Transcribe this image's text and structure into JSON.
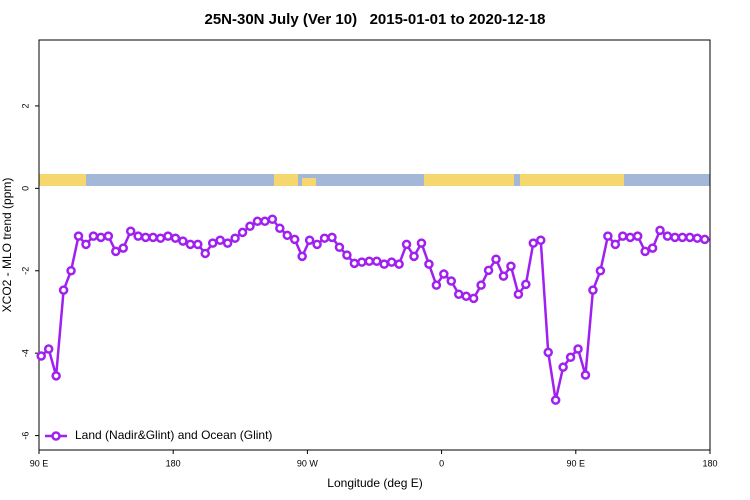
{
  "chart_data": {
    "type": "line",
    "title": "25N-30N July (Ver 10)   2015-01-01 to 2020-12-18",
    "x_label": "Longitude (deg E)",
    "y_label": "XCO2 - MLO trend (ppm)",
    "xlim": [
      90,
      540
    ],
    "ylim": [
      -6.35,
      3.6
    ],
    "xticks": [
      {
        "value": 90,
        "label": "90 E"
      },
      180,
      {
        "value": 270,
        "label": "90 W"
      },
      {
        "value": 360,
        "label": "0"
      },
      {
        "value": 450,
        "label": "90 E"
      },
      {
        "value": 540,
        "label": "180"
      }
    ],
    "yticks": [
      -6,
      -4,
      -2,
      0,
      2
    ],
    "legend_position": "bottom-left",
    "x": [
      91.5,
      96.5,
      101.5,
      106.5,
      111.5,
      116.5,
      121.5,
      126.5,
      131.5,
      136.5,
      141.5,
      146.5,
      151.5,
      156.5,
      161.5,
      166.5,
      171.5,
      176.5,
      181.5,
      186.5,
      191.5,
      196.5,
      201.5,
      206.5,
      211.5,
      216.5,
      221.5,
      226.5,
      231.5,
      236.5,
      241.5,
      246.5,
      251.5,
      256.5,
      261.5,
      266.5,
      271.5,
      276.5,
      281.5,
      286.5,
      291.5,
      296.5,
      301.5,
      306.5,
      311.5,
      316.5,
      321.5,
      326.5,
      331.5,
      336.5,
      341.5,
      346.5,
      351.5,
      356.5,
      361.5,
      366.5,
      371.5,
      376.5,
      381.5,
      386.5,
      391.5,
      396.5,
      401.5,
      406.5,
      411.5,
      416.5,
      421.5,
      426.5,
      431.5,
      436.5,
      441.5,
      446.5,
      451.5,
      456.5,
      461.5,
      466.5,
      471.5,
      476.5,
      481.5,
      486.5,
      491.5,
      496.5,
      501.5,
      506.5,
      511.5,
      516.5,
      521.5,
      526.5,
      531.5,
      536.5
    ],
    "series": [
      {
        "name": "Land (Nadir&Glint) and Ocean (Glint)",
        "color": "#a020f0",
        "values": [
          -4.07,
          -3.9,
          -4.55,
          -2.47,
          -2.0,
          -1.16,
          -1.36,
          -1.16,
          -1.19,
          -1.16,
          -1.53,
          -1.45,
          -1.04,
          -1.16,
          -1.19,
          -1.19,
          -1.21,
          -1.16,
          -1.21,
          -1.28,
          -1.36,
          -1.36,
          -1.58,
          -1.33,
          -1.26,
          -1.33,
          -1.21,
          -1.07,
          -0.92,
          -0.8,
          -0.8,
          -0.75,
          -0.97,
          -1.14,
          -1.24,
          -1.65,
          -1.26,
          -1.36,
          -1.21,
          -1.19,
          -1.43,
          -1.62,
          -1.82,
          -1.79,
          -1.77,
          -1.77,
          -1.84,
          -1.79,
          -1.84,
          -1.36,
          -1.65,
          -1.33,
          -1.84,
          -2.35,
          -2.08,
          -2.25,
          -2.57,
          -2.62,
          -2.67,
          -2.35,
          -1.99,
          -1.72,
          -2.13,
          -1.89,
          -2.57,
          -2.33,
          -1.33,
          -1.26,
          -3.98,
          -5.14,
          -4.34,
          -4.1,
          -3.9,
          -4.53,
          -2.47,
          -2.0,
          -1.16,
          -1.36,
          -1.16,
          -1.19,
          -1.16,
          -1.53,
          -1.45,
          -1.02,
          -1.16,
          -1.19,
          -1.19,
          -1.19,
          -1.21,
          -1.24
        ]
      }
    ]
  }
}
